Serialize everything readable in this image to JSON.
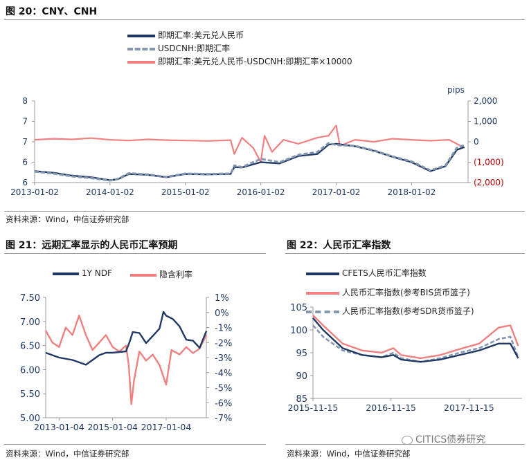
{
  "fig20": {
    "title": "图 20：CNY、CNH",
    "source": "资料来源：Wind，中信证券研究部"
  },
  "fig21": {
    "title": "图 21：远期汇率显示的人民币汇率预期",
    "source": "资料来源：Wind，中信证券研究部"
  },
  "fig22": {
    "title": "图 22：人民币汇率指数",
    "source": "资料来源：Wind，中信证券研究部"
  },
  "watermark": "CITICS债券研究",
  "colors": {
    "navy": "#1f3864",
    "grey": "#8497b0",
    "salmon": "#f08080",
    "negative": "#c00000"
  },
  "chart_data": [
    {
      "id": "fig20",
      "type": "line",
      "x_ticks": [
        "2013-01-02",
        "2014-01-02",
        "2015-01-02",
        "2016-01-02",
        "2017-01-02",
        "2018-01-02"
      ],
      "y_left_ticks": [
        "8",
        "7",
        "7",
        "6",
        "6"
      ],
      "y_left_range": [
        6,
        8
      ],
      "y_right_ticks": [
        "2,000",
        "1,000",
        "0",
        "(1,000)",
        "(2,000)"
      ],
      "y_right_range": [
        -2000,
        2000
      ],
      "right_unit": "pips",
      "series": [
        {
          "name": "即期汇率:美元兑人民币",
          "axis": "left",
          "x": [
            2013.0,
            2013.25,
            2013.5,
            2013.75,
            2014.0,
            2014.1,
            2014.25,
            2014.5,
            2014.75,
            2015.0,
            2015.3,
            2015.6,
            2015.65,
            2015.75,
            2016.0,
            2016.25,
            2016.5,
            2016.75,
            2016.9,
            2017.0,
            2017.25,
            2017.5,
            2017.75,
            2018.0,
            2018.25,
            2018.45,
            2018.6,
            2018.7
          ],
          "values": [
            6.28,
            6.24,
            6.17,
            6.13,
            6.06,
            6.08,
            6.21,
            6.19,
            6.13,
            6.21,
            6.2,
            6.21,
            6.38,
            6.37,
            6.5,
            6.47,
            6.65,
            6.7,
            6.93,
            6.95,
            6.89,
            6.78,
            6.63,
            6.5,
            6.28,
            6.4,
            6.8,
            6.87
          ]
        },
        {
          "name": "USDCNH:即期汇率",
          "axis": "left",
          "x": [
            2013.0,
            2013.25,
            2013.5,
            2013.75,
            2014.0,
            2014.1,
            2014.25,
            2014.5,
            2014.75,
            2015.0,
            2015.3,
            2015.6,
            2015.65,
            2015.75,
            2016.0,
            2016.25,
            2016.5,
            2016.75,
            2016.9,
            2017.0,
            2017.25,
            2017.5,
            2017.75,
            2018.0,
            2018.25,
            2018.45,
            2018.6,
            2018.7
          ],
          "values": [
            6.27,
            6.22,
            6.15,
            6.11,
            6.05,
            6.09,
            6.23,
            6.2,
            6.14,
            6.22,
            6.21,
            6.22,
            6.42,
            6.38,
            6.58,
            6.5,
            6.68,
            6.75,
            6.97,
            6.92,
            6.9,
            6.79,
            6.64,
            6.52,
            6.3,
            6.42,
            6.85,
            6.92
          ]
        },
        {
          "name": "即期汇率:美元兑人民币-USDCNH:即期汇率×10000",
          "axis": "right",
          "x": [
            2013.0,
            2013.25,
            2013.5,
            2013.75,
            2014.0,
            2014.25,
            2014.5,
            2014.75,
            2015.0,
            2015.3,
            2015.6,
            2015.65,
            2015.75,
            2015.9,
            2016.0,
            2016.05,
            2016.15,
            2016.3,
            2016.5,
            2016.75,
            2016.9,
            2017.0,
            2017.05,
            2017.25,
            2017.5,
            2017.75,
            2018.0,
            2018.25,
            2018.5,
            2018.7
          ],
          "values": [
            100,
            150,
            120,
            180,
            100,
            60,
            120,
            80,
            60,
            40,
            80,
            -600,
            200,
            -300,
            -1000,
            300,
            -500,
            100,
            -100,
            200,
            300,
            800,
            -200,
            100,
            0,
            150,
            100,
            50,
            100,
            -300
          ]
        }
      ]
    },
    {
      "id": "fig21",
      "type": "line",
      "x_ticks": [
        "2013-01-04",
        "2015-01-04",
        "2017-01-04"
      ],
      "y_left_ticks": [
        "7.50",
        "7.00",
        "6.50",
        "6.00",
        "5.50",
        "5.00"
      ],
      "y_left_range": [
        5.0,
        7.5
      ],
      "y_right_ticks": [
        "1%",
        "0%",
        "-1%",
        "-2%",
        "-3%",
        "-4%",
        "-5%",
        "-6%",
        "-7%"
      ],
      "y_right_range": [
        -7,
        1
      ],
      "series": [
        {
          "name": "1Y NDF",
          "axis": "left",
          "x": [
            2012.5,
            2013.0,
            2013.5,
            2014.0,
            2014.25,
            2014.5,
            2014.75,
            2015.0,
            2015.5,
            2015.65,
            2015.75,
            2016.0,
            2016.25,
            2016.5,
            2016.75,
            2016.9,
            2017.0,
            2017.25,
            2017.5,
            2017.75,
            2018.0,
            2018.25,
            2018.5
          ],
          "values": [
            6.35,
            6.25,
            6.2,
            6.1,
            6.2,
            6.3,
            6.35,
            6.35,
            6.38,
            6.6,
            6.78,
            6.76,
            6.55,
            6.7,
            6.85,
            7.2,
            7.12,
            7.05,
            6.9,
            6.62,
            6.6,
            6.45,
            6.8
          ]
        },
        {
          "name": "隐含利率",
          "axis": "right",
          "x": [
            2012.5,
            2012.75,
            2013.0,
            2013.25,
            2013.5,
            2013.75,
            2014.0,
            2014.25,
            2014.5,
            2014.75,
            2015.0,
            2015.25,
            2015.5,
            2015.6,
            2015.7,
            2015.8,
            2016.0,
            2016.25,
            2016.5,
            2016.75,
            2017.0,
            2017.2,
            2017.5,
            2017.75,
            2018.0,
            2018.25,
            2018.5
          ],
          "values": [
            -1.2,
            -2.0,
            -2.3,
            -1.0,
            -1.5,
            -0.2,
            -1.5,
            -2.5,
            -2.0,
            -1.5,
            -2.3,
            -2.6,
            -2.2,
            -3.5,
            -6.1,
            -4.5,
            -2.6,
            -3.2,
            -2.8,
            -3.5,
            -4.8,
            -2.5,
            -2.8,
            -2.3,
            -2.7,
            -2.4,
            -1.5
          ]
        }
      ]
    },
    {
      "id": "fig22",
      "type": "line",
      "x_ticks": [
        "2015-11-15",
        "2016-11-15",
        "2017-11-15"
      ],
      "y_ticks": [
        "105",
        "100",
        "95",
        "90",
        "85"
      ],
      "y_range": [
        85,
        105
      ],
      "series": [
        {
          "name": "CFETS人民币汇率指数",
          "x": [
            2015.87,
            2016.0,
            2016.25,
            2016.5,
            2016.75,
            2016.9,
            2017.0,
            2017.25,
            2017.5,
            2017.75,
            2018.0,
            2018.25,
            2018.4,
            2018.5
          ],
          "values": [
            102.6,
            100.0,
            96.0,
            94.5,
            94.0,
            94.5,
            93.5,
            93.0,
            93.5,
            94.5,
            95.5,
            97.0,
            97.0,
            93.8
          ]
        },
        {
          "name": "人民币汇率指数(参考BIS货币篮子)",
          "x": [
            2015.87,
            2016.0,
            2016.25,
            2016.5,
            2016.75,
            2016.9,
            2017.0,
            2017.25,
            2017.5,
            2017.75,
            2018.0,
            2018.25,
            2018.4,
            2018.5
          ],
          "values": [
            103.2,
            101.0,
            97.0,
            95.5,
            95.0,
            96.0,
            94.5,
            93.8,
            94.5,
            95.8,
            97.0,
            100.5,
            101.0,
            96.5
          ]
        },
        {
          "name": "人民币汇率指数(参考SDR货币篮子)",
          "x": [
            2015.87,
            2016.0,
            2016.25,
            2016.5,
            2016.75,
            2016.9,
            2017.0,
            2017.25,
            2017.5,
            2017.75,
            2018.0,
            2018.25,
            2018.4,
            2018.5
          ],
          "values": [
            101.0,
            98.5,
            95.5,
            94.5,
            94.0,
            95.0,
            93.8,
            93.0,
            93.8,
            95.0,
            96.0,
            98.0,
            98.5,
            94.0
          ]
        }
      ]
    }
  ]
}
